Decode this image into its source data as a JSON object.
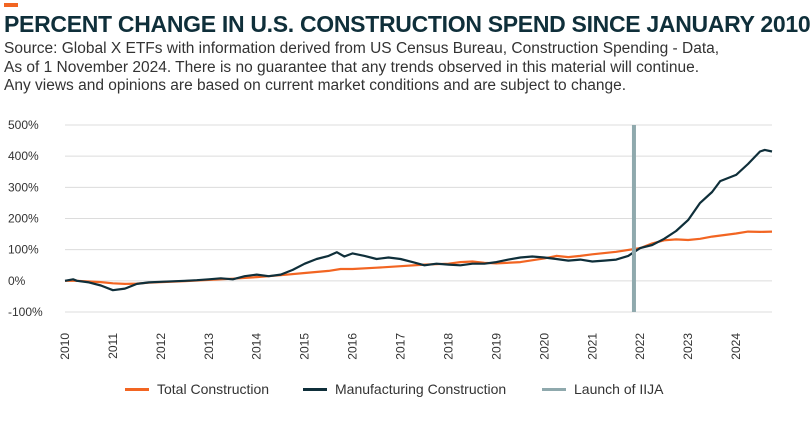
{
  "header": {
    "title": "PERCENT CHANGE IN U.S. CONSTRUCTION SPEND SINCE JANUARY 2010",
    "source_lines": [
      "Source: Global X ETFs with information derived from US Census Bureau, Construction Spending - Data,",
      "As of 1 November 2024. There is no guarantee that any trends observed in this material will continue.",
      "Any views and opinions are based on current market conditions and are subject to change."
    ]
  },
  "colors": {
    "accent": "#f26522",
    "total": "#f26522",
    "manufacturing": "#0f2f3a",
    "iija": "#8fa9ad",
    "grid": "#dcdcdc"
  },
  "chart_data": {
    "type": "line",
    "title": "PERCENT CHANGE IN U.S. CONSTRUCTION SPEND SINCE JANUARY 2010",
    "xlabel": "",
    "ylabel": "",
    "ylim": [
      -100,
      500
    ],
    "xlim": [
      2010,
      2024.75
    ],
    "y_ticks": [
      -100,
      0,
      100,
      200,
      300,
      400,
      500
    ],
    "y_tick_labels": [
      "-100%",
      "0%",
      "100%",
      "200%",
      "300%",
      "400%",
      "500%"
    ],
    "x_ticks": [
      2010,
      2011,
      2012,
      2013,
      2014,
      2015,
      2016,
      2017,
      2018,
      2019,
      2020,
      2021,
      2022,
      2023,
      2024
    ],
    "x_tick_labels": [
      "2010",
      "2011",
      "2012",
      "2013",
      "2014",
      "2015",
      "2016",
      "2017",
      "2018",
      "2019",
      "2020",
      "2021",
      "2022",
      "2023",
      "2024"
    ],
    "grid": true,
    "legend_position": "bottom",
    "series": [
      {
        "name": "Total Construction",
        "color": "#f26522",
        "points": [
          [
            2010.0,
            0
          ],
          [
            2010.25,
            0
          ],
          [
            2010.5,
            -2
          ],
          [
            2010.75,
            -4
          ],
          [
            2011.0,
            -8
          ],
          [
            2011.25,
            -10
          ],
          [
            2011.5,
            -9
          ],
          [
            2011.75,
            -6
          ],
          [
            2012.0,
            -4
          ],
          [
            2012.5,
            -1
          ],
          [
            2013.0,
            3
          ],
          [
            2013.5,
            7
          ],
          [
            2014.0,
            12
          ],
          [
            2014.5,
            18
          ],
          [
            2015.0,
            25
          ],
          [
            2015.5,
            32
          ],
          [
            2015.75,
            38
          ],
          [
            2016.0,
            38
          ],
          [
            2016.5,
            42
          ],
          [
            2017.0,
            47
          ],
          [
            2017.5,
            52
          ],
          [
            2018.0,
            55
          ],
          [
            2018.25,
            60
          ],
          [
            2018.5,
            62
          ],
          [
            2018.75,
            58
          ],
          [
            2019.0,
            56
          ],
          [
            2019.5,
            60
          ],
          [
            2020.0,
            72
          ],
          [
            2020.25,
            80
          ],
          [
            2020.5,
            76
          ],
          [
            2020.75,
            80
          ],
          [
            2021.0,
            85
          ],
          [
            2021.5,
            93
          ],
          [
            2022.0,
            105
          ],
          [
            2022.25,
            120
          ],
          [
            2022.5,
            130
          ],
          [
            2022.75,
            133
          ],
          [
            2023.0,
            131
          ],
          [
            2023.25,
            135
          ],
          [
            2023.5,
            142
          ],
          [
            2024.0,
            152
          ],
          [
            2024.25,
            158
          ],
          [
            2024.5,
            157
          ],
          [
            2024.75,
            158
          ]
        ]
      },
      {
        "name": "Manufacturing Construction",
        "color": "#0f2f3a",
        "points": [
          [
            2010.0,
            0
          ],
          [
            2010.17,
            5
          ],
          [
            2010.25,
            0
          ],
          [
            2010.5,
            -5
          ],
          [
            2010.75,
            -15
          ],
          [
            2011.0,
            -30
          ],
          [
            2011.25,
            -25
          ],
          [
            2011.5,
            -10
          ],
          [
            2011.75,
            -5
          ],
          [
            2012.0,
            -3
          ],
          [
            2012.5,
            0
          ],
          [
            2012.75,
            2
          ],
          [
            2013.0,
            5
          ],
          [
            2013.25,
            8
          ],
          [
            2013.5,
            5
          ],
          [
            2013.75,
            15
          ],
          [
            2014.0,
            20
          ],
          [
            2014.25,
            15
          ],
          [
            2014.5,
            20
          ],
          [
            2014.75,
            35
          ],
          [
            2015.0,
            55
          ],
          [
            2015.25,
            70
          ],
          [
            2015.5,
            80
          ],
          [
            2015.67,
            92
          ],
          [
            2015.83,
            78
          ],
          [
            2016.0,
            88
          ],
          [
            2016.25,
            80
          ],
          [
            2016.5,
            70
          ],
          [
            2016.75,
            75
          ],
          [
            2017.0,
            70
          ],
          [
            2017.25,
            60
          ],
          [
            2017.5,
            50
          ],
          [
            2017.75,
            55
          ],
          [
            2018.0,
            52
          ],
          [
            2018.25,
            50
          ],
          [
            2018.5,
            55
          ],
          [
            2018.75,
            55
          ],
          [
            2019.0,
            60
          ],
          [
            2019.25,
            68
          ],
          [
            2019.5,
            75
          ],
          [
            2019.75,
            78
          ],
          [
            2020.0,
            75
          ],
          [
            2020.25,
            70
          ],
          [
            2020.5,
            65
          ],
          [
            2020.75,
            68
          ],
          [
            2021.0,
            62
          ],
          [
            2021.25,
            65
          ],
          [
            2021.5,
            68
          ],
          [
            2021.75,
            80
          ],
          [
            2022.0,
            105
          ],
          [
            2022.25,
            115
          ],
          [
            2022.5,
            135
          ],
          [
            2022.75,
            160
          ],
          [
            2023.0,
            195
          ],
          [
            2023.25,
            250
          ],
          [
            2023.5,
            285
          ],
          [
            2023.67,
            320
          ],
          [
            2024.0,
            340
          ],
          [
            2024.25,
            375
          ],
          [
            2024.5,
            415
          ],
          [
            2024.6,
            420
          ],
          [
            2024.75,
            415
          ]
        ]
      },
      {
        "name": "Launch of IIJA",
        "color": "#8fa9ad",
        "type": "vertical-line",
        "x": 2021.87
      }
    ]
  },
  "legend": {
    "items": [
      {
        "label": "Total Construction",
        "color": "#f26522"
      },
      {
        "label": "Manufacturing Construction",
        "color": "#0f2f3a"
      },
      {
        "label": "Launch of IIJA",
        "color": "#8fa9ad"
      }
    ]
  }
}
